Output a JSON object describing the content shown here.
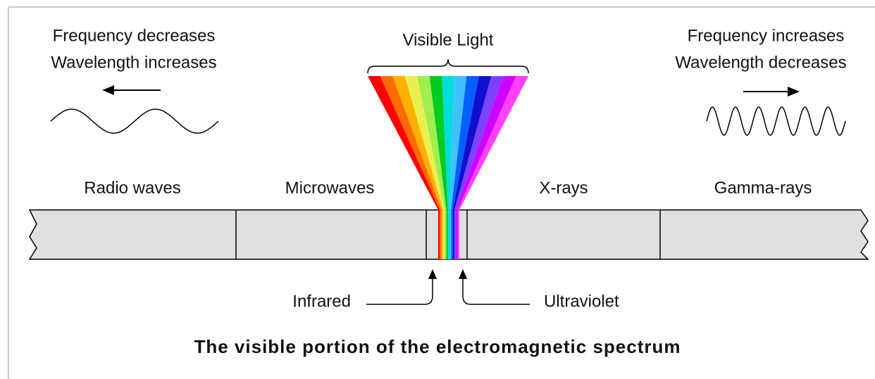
{
  "left_note": {
    "line1": "Frequency decreases",
    "line2": "Wavelength increases"
  },
  "right_note": {
    "line1": "Frequency increases",
    "line2": "Wavelength decreases"
  },
  "visible_light": "Visible Light",
  "bands": [
    "Radio waves",
    "Microwaves",
    "X-rays",
    "Gamma-rays"
  ],
  "pointers": {
    "infrared": "Infrared",
    "ultraviolet": "Ultraviolet"
  },
  "caption": "The visible portion of the electromagnetic spectrum"
}
